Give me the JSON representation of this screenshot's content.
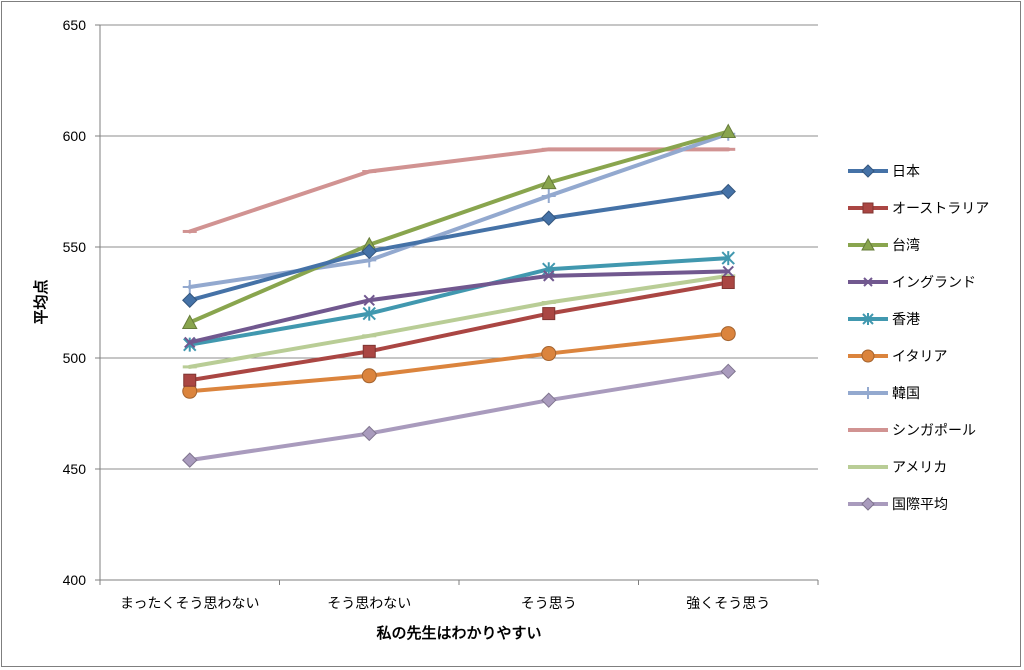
{
  "chart_data": {
    "type": "line",
    "title": "",
    "xlabel": "私の先生はわかりやすい",
    "ylabel": "平均点",
    "ylim": [
      400,
      650
    ],
    "yticks": [
      400,
      450,
      500,
      550,
      600,
      650
    ],
    "grid": "horizontal",
    "legend_position": "right",
    "categories": [
      "まったくそう思わない",
      "そう思わない",
      "そう思う",
      "強くそう思う"
    ],
    "series": [
      {
        "name": "日本",
        "color": "#4572a7",
        "marker": "diamond",
        "values": [
          526,
          548,
          563,
          575
        ]
      },
      {
        "name": "オーストラリア",
        "color": "#aa4643",
        "marker": "square",
        "values": [
          490,
          503,
          520,
          534
        ]
      },
      {
        "name": "台湾",
        "color": "#89a54e",
        "marker": "triangle",
        "values": [
          516,
          551,
          579,
          602
        ]
      },
      {
        "name": "イングランド",
        "color": "#71588f",
        "marker": "x",
        "values": [
          507,
          526,
          537,
          539
        ]
      },
      {
        "name": "香港",
        "color": "#4198af",
        "marker": "star",
        "values": [
          506,
          520,
          540,
          545
        ]
      },
      {
        "name": "イタリア",
        "color": "#db843d",
        "marker": "circle",
        "values": [
          485,
          492,
          502,
          511
        ]
      },
      {
        "name": "韓国",
        "color": "#93a9cf",
        "marker": "plus",
        "values": [
          532,
          544,
          573,
          601
        ]
      },
      {
        "name": "シンガポール",
        "color": "#d19392",
        "marker": "dash",
        "values": [
          557,
          584,
          594,
          594
        ]
      },
      {
        "name": "アメリカ",
        "color": "#b9cd96",
        "marker": "dash",
        "values": [
          496,
          510,
          525,
          537
        ]
      },
      {
        "name": "国際平均",
        "color": "#a99bbd",
        "marker": "diamond",
        "values": [
          454,
          466,
          481,
          494
        ]
      }
    ]
  }
}
